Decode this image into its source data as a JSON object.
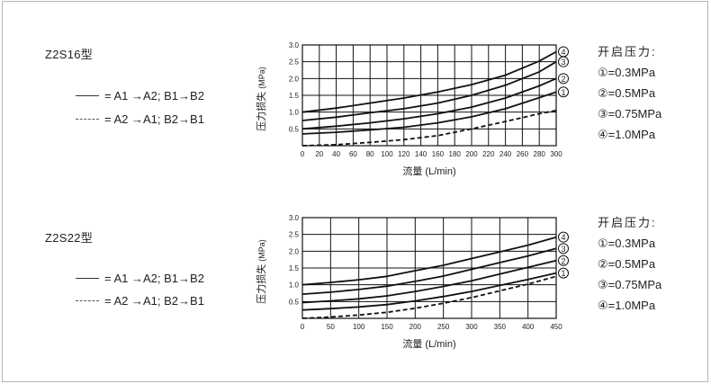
{
  "charts": [
    {
      "model_label": "Z2S16型",
      "legend": [
        {
          "style": "solid",
          "text": "= A1 →A2; B1→B2"
        },
        {
          "style": "dashed",
          "text": "= A2 →A1; B2→B1"
        }
      ],
      "pressure_title": "开启压力:",
      "pressures": [
        "①=0.3MPa",
        "②=0.5MPa",
        "③=0.75MPa",
        "④=1.0MPa"
      ]
    },
    {
      "model_label": "Z2S22型",
      "legend": [
        {
          "style": "solid",
          "text": "= A1 →A2; B1→B2"
        },
        {
          "style": "dashed",
          "text": "= A2 →A1; B2→B1"
        }
      ],
      "pressure_title": "开启压力:",
      "pressures": [
        "①=0.3MPa",
        "②=0.5MPa",
        "③=0.75MPa",
        "④=1.0MPa"
      ]
    }
  ],
  "chart_data": [
    {
      "type": "line",
      "xlabel": "流量 (L/min)",
      "ylabel": "压力损失 (MPa)",
      "xlim": [
        0,
        300
      ],
      "ylim": [
        0,
        3.0
      ],
      "x_ticks": [
        0,
        20,
        40,
        60,
        80,
        100,
        120,
        140,
        160,
        180,
        200,
        220,
        240,
        260,
        280,
        300
      ],
      "y_ticks": [
        0.5,
        1.0,
        1.5,
        2.0,
        2.5,
        3.0
      ],
      "y_tick_labels": [
        "0.5",
        "1.0",
        "1.5",
        "2.0",
        "2.5",
        "3.0"
      ],
      "grid": true,
      "series": [
        {
          "name": "④",
          "style": "solid",
          "x": [
            0,
            40,
            80,
            120,
            160,
            200,
            240,
            280,
            300
          ],
          "y": [
            1.0,
            1.12,
            1.27,
            1.42,
            1.6,
            1.82,
            2.1,
            2.52,
            2.8
          ]
        },
        {
          "name": "③",
          "style": "solid",
          "x": [
            0,
            40,
            80,
            120,
            160,
            200,
            240,
            280,
            300
          ],
          "y": [
            0.75,
            0.85,
            0.98,
            1.1,
            1.27,
            1.5,
            1.8,
            2.2,
            2.5
          ]
        },
        {
          "name": "②",
          "style": "solid",
          "x": [
            0,
            40,
            80,
            120,
            160,
            200,
            240,
            280,
            300
          ],
          "y": [
            0.5,
            0.58,
            0.68,
            0.8,
            0.95,
            1.15,
            1.42,
            1.78,
            2.0
          ]
        },
        {
          "name": "①",
          "style": "solid",
          "x": [
            0,
            40,
            80,
            120,
            160,
            200,
            240,
            280,
            300
          ],
          "y": [
            0.35,
            0.4,
            0.47,
            0.55,
            0.68,
            0.86,
            1.1,
            1.43,
            1.6
          ]
        },
        {
          "style": "dashed",
          "x": [
            0,
            40,
            80,
            120,
            160,
            200,
            240,
            280,
            300
          ],
          "y": [
            0.0,
            0.03,
            0.1,
            0.18,
            0.3,
            0.5,
            0.72,
            0.95,
            1.05
          ]
        }
      ]
    },
    {
      "type": "line",
      "xlabel": "流量 (L/min)",
      "ylabel": "压力损失 (MPa)",
      "xlim": [
        0,
        450
      ],
      "ylim": [
        0,
        3.0
      ],
      "x_ticks": [
        0,
        50,
        100,
        150,
        200,
        250,
        300,
        350,
        400,
        450
      ],
      "y_ticks": [
        0.5,
        1.0,
        1.5,
        2.0,
        2.5,
        3.0
      ],
      "y_tick_labels": [
        "0.5",
        "1.0",
        "1.5",
        "2.0",
        "2.5",
        "3.0"
      ],
      "grid": true,
      "series": [
        {
          "name": "④",
          "style": "solid",
          "x": [
            0,
            50,
            100,
            150,
            200,
            250,
            300,
            350,
            400,
            450
          ],
          "y": [
            1.0,
            1.07,
            1.15,
            1.25,
            1.42,
            1.58,
            1.78,
            1.98,
            2.18,
            2.42
          ]
        },
        {
          "name": "③",
          "style": "solid",
          "x": [
            0,
            50,
            100,
            150,
            200,
            250,
            300,
            350,
            400,
            450
          ],
          "y": [
            0.72,
            0.78,
            0.86,
            0.96,
            1.1,
            1.26,
            1.46,
            1.66,
            1.86,
            2.08
          ]
        },
        {
          "name": "②",
          "style": "solid",
          "x": [
            0,
            50,
            100,
            150,
            200,
            250,
            300,
            350,
            400,
            450
          ],
          "y": [
            0.47,
            0.52,
            0.58,
            0.67,
            0.8,
            0.95,
            1.12,
            1.32,
            1.52,
            1.72
          ]
        },
        {
          "name": "①",
          "style": "solid",
          "x": [
            0,
            50,
            100,
            150,
            200,
            250,
            300,
            350,
            400,
            450
          ],
          "y": [
            0.25,
            0.29,
            0.34,
            0.41,
            0.52,
            0.65,
            0.8,
            0.98,
            1.16,
            1.35
          ]
        },
        {
          "style": "dashed",
          "x": [
            0,
            50,
            100,
            150,
            200,
            250,
            300,
            350,
            400,
            450
          ],
          "y": [
            0.0,
            0.04,
            0.1,
            0.18,
            0.3,
            0.45,
            0.62,
            0.82,
            1.02,
            1.25
          ]
        }
      ]
    }
  ]
}
